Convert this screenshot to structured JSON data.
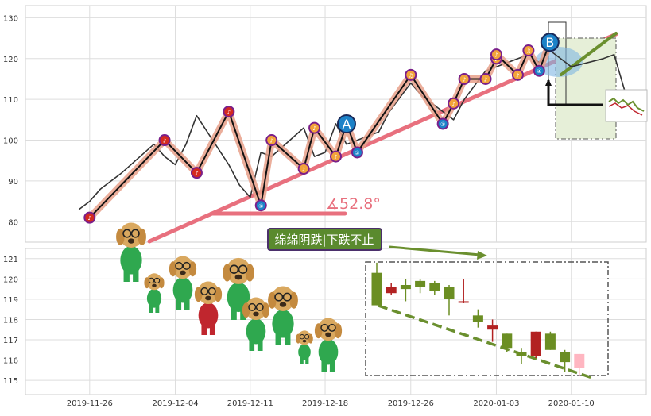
{
  "colors": {
    "grid": "#dddddd",
    "axis_frame": "#cfcfcf",
    "price_line": "#333333",
    "wave_black": "#111111",
    "wave_salmon": "#e8a08a",
    "trend_pink": "#e8707e",
    "green_arrow": "#6a8f2e",
    "candle_up": "#6b8e23",
    "candle_down": "#b22222",
    "candle_last": "#ffb6c1",
    "label_bg": "#5a8a2e",
    "label_border": "#4b2f6b",
    "marker_red": "#d42a1f",
    "marker_orange": "#f2a33a",
    "marker_blue": "#1c82c8",
    "box_fill": "#e6efd8"
  },
  "icons": {
    "dog_mascot": "dog-mascot-icon",
    "mini_chart": "mini-chart-thumbnail-icon",
    "wave_marker": "wave-marker-icon",
    "angle_symbol": "∡"
  },
  "chart_data": [
    {
      "type": "line",
      "panel": "price",
      "y_ticks": [
        "80",
        "90",
        "100",
        "110",
        "120",
        "130"
      ],
      "ylim": [
        75,
        133
      ],
      "xlim": [
        "2019-11-25",
        "2020-01-15"
      ],
      "grid": true,
      "x": [
        "2019-11-25",
        "2019-11-26",
        "2019-11-27",
        "2019-11-29",
        "2019-12-02",
        "2019-12-03",
        "2019-12-04",
        "2019-12-05",
        "2019-12-06",
        "2019-12-09",
        "2019-12-10",
        "2019-12-11",
        "2019-12-12",
        "2019-12-13",
        "2019-12-16",
        "2019-12-17",
        "2019-12-18",
        "2019-12-19",
        "2019-12-20",
        "2019-12-23",
        "2019-12-24",
        "2019-12-26",
        "2019-12-27",
        "2019-12-30",
        "2019-12-31",
        "2020-01-02",
        "2020-01-03",
        "2020-01-06",
        "2020-01-07",
        "2020-01-08",
        "2020-01-09",
        "2020-01-10",
        "2020-01-13",
        "2020-01-14",
        "2020-01-15"
      ],
      "values": [
        83,
        85,
        88,
        92,
        99,
        96,
        94,
        99,
        106,
        94,
        89,
        86,
        97,
        96,
        103,
        96,
        97,
        104,
        99,
        102,
        107,
        114,
        111,
        105,
        110,
        117,
        118,
        121,
        119,
        122,
        120,
        118,
        120,
        121,
        112
      ],
      "wave_points": [
        {
          "x": "2019-11-26",
          "y": 81,
          "label": "♪"
        },
        {
          "x": "2019-12-03",
          "y": 100,
          "label": "♪"
        },
        {
          "x": "2019-12-06",
          "y": 92,
          "label": "♪"
        },
        {
          "x": "2019-12-09",
          "y": 107,
          "label": "♪"
        },
        {
          "x": "2019-12-12",
          "y": 84,
          "label": "①"
        },
        {
          "x": "2019-12-13",
          "y": 100,
          "label": "♪"
        },
        {
          "x": "2019-12-16",
          "y": 93,
          "label": "♪"
        },
        {
          "x": "2019-12-17",
          "y": 103,
          "label": "♪"
        },
        {
          "x": "2019-12-19",
          "y": 96,
          "label": "♪"
        },
        {
          "x": "2019-12-20",
          "y": 104,
          "label": "A"
        },
        {
          "x": "2019-12-21",
          "y": 97,
          "label": "②"
        },
        {
          "x": "2019-12-26",
          "y": 116,
          "label": "♫"
        },
        {
          "x": "2019-12-29",
          "y": 104,
          "label": "③"
        },
        {
          "x": "2019-12-30",
          "y": 109,
          "label": "♪"
        },
        {
          "x": "2019-12-31",
          "y": 115,
          "label": "♪"
        },
        {
          "x": "2020-01-02",
          "y": 115,
          "label": "♪"
        },
        {
          "x": "2020-01-03",
          "y": 120,
          "label": "♪"
        },
        {
          "x": "2020-01-03",
          "y": 121,
          "label": "♪"
        },
        {
          "x": "2020-01-05",
          "y": 116,
          "label": "♪"
        },
        {
          "x": "2020-01-06",
          "y": 122,
          "label": "♫"
        },
        {
          "x": "2020-01-07",
          "y": 117,
          "label": "④"
        },
        {
          "x": "2020-01-08",
          "y": 124,
          "label": "B"
        }
      ],
      "annotations": {
        "angle_label": "∡52.8°"
      }
    },
    {
      "type": "candlestick",
      "panel": "volume",
      "y_ticks": [
        "115",
        "116",
        "117",
        "118",
        "119",
        "120",
        "121"
      ],
      "ylim": [
        114.3,
        121.5
      ],
      "x_ticks": [
        "2019-11-26",
        "2019-12-04",
        "2019-12-11",
        "2019-12-18",
        "2019-12-26",
        "2020-01-03",
        "2020-01-10"
      ],
      "grid": true,
      "candles": [
        {
          "x": "2019-12-26",
          "open": 118.7,
          "high": 120.8,
          "low": 118.7,
          "close": 120.3,
          "dir": "up"
        },
        {
          "x": "2019-12-27",
          "open": 119.6,
          "high": 119.8,
          "low": 119.2,
          "close": 119.3,
          "dir": "down"
        },
        {
          "x": "2019-12-30",
          "open": 119.5,
          "high": 120.0,
          "low": 118.9,
          "close": 119.7,
          "dir": "up"
        },
        {
          "x": "2019-12-31",
          "open": 119.6,
          "high": 120.0,
          "low": 119.3,
          "close": 119.9,
          "dir": "up"
        },
        {
          "x": "2020-01-02",
          "open": 119.4,
          "high": 119.9,
          "low": 119.2,
          "close": 119.8,
          "dir": "up"
        },
        {
          "x": "2020-01-03",
          "open": 119.0,
          "high": 119.7,
          "low": 118.2,
          "close": 119.6,
          "dir": "up"
        },
        {
          "x": "2020-01-06",
          "open": 118.9,
          "high": 120.0,
          "low": 118.8,
          "close": 118.9,
          "dir": "down"
        },
        {
          "x": "2020-01-07",
          "open": 117.9,
          "high": 118.5,
          "low": 117.6,
          "close": 118.2,
          "dir": "up"
        },
        {
          "x": "2020-01-08",
          "open": 117.7,
          "high": 118.0,
          "low": 116.9,
          "close": 117.5,
          "dir": "down"
        },
        {
          "x": "2020-01-09",
          "open": 116.6,
          "high": 117.3,
          "low": 116.4,
          "close": 117.3,
          "dir": "up"
        },
        {
          "x": "2020-01-10",
          "open": 116.2,
          "high": 116.6,
          "low": 115.8,
          "close": 116.4,
          "dir": "up"
        },
        {
          "x": "2020-01-13",
          "open": 117.4,
          "high": 117.4,
          "low": 116.1,
          "close": 116.2,
          "dir": "down"
        },
        {
          "x": "2020-01-14",
          "open": 116.5,
          "high": 117.4,
          "low": 116.5,
          "close": 117.3,
          "dir": "up"
        },
        {
          "x": "2020-01-15",
          "open": 115.9,
          "high": 116.5,
          "low": 115.4,
          "close": 116.4,
          "dir": "up"
        },
        {
          "x": "2020-01-16",
          "open": 116.3,
          "high": 116.3,
          "low": 115.2,
          "close": 115.6,
          "dir": "last"
        }
      ],
      "annotations": {
        "pattern_label": "绵绵阴跌|下跌不止"
      }
    }
  ]
}
